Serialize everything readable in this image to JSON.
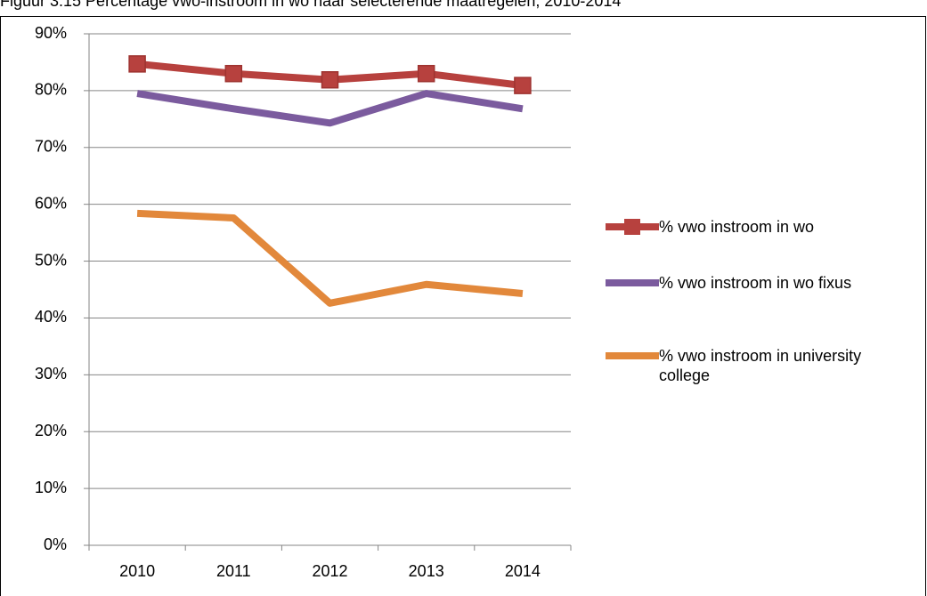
{
  "chart_data": {
    "type": "line",
    "title": "Figuur 3.15 Percentage vwo-instroom in wo naar selecterende maatregelen, 2010-2014",
    "categories": [
      "2010",
      "2011",
      "2012",
      "2013",
      "2014"
    ],
    "series": [
      {
        "name": "% vwo instroom in wo",
        "color": "#b7413e",
        "marker": "square",
        "values": [
          84.7,
          83.0,
          81.9,
          83.0,
          80.9
        ]
      },
      {
        "name": "% vwo instroom in wo fixus",
        "color": "#7b5b9e",
        "values": [
          79.5,
          76.8,
          74.3,
          79.5,
          76.8
        ]
      },
      {
        "name": "% vwo instroom in university college",
        "color": "#e2883b",
        "values": [
          58.4,
          57.6,
          42.6,
          45.9,
          44.3
        ]
      }
    ],
    "ylim": [
      0,
      90
    ],
    "yticks": [
      {
        "value": 0,
        "label": "0%"
      },
      {
        "value": 10,
        "label": "10%"
      },
      {
        "value": 20,
        "label": "20%"
      },
      {
        "value": 30,
        "label": "30%"
      },
      {
        "value": 40,
        "label": "40%"
      },
      {
        "value": 50,
        "label": "50%"
      },
      {
        "value": 60,
        "label": "60%"
      },
      {
        "value": 70,
        "label": "70%"
      },
      {
        "value": 80,
        "label": "80%"
      },
      {
        "value": 90,
        "label": "90%"
      }
    ],
    "grid": true,
    "legend": "right"
  }
}
